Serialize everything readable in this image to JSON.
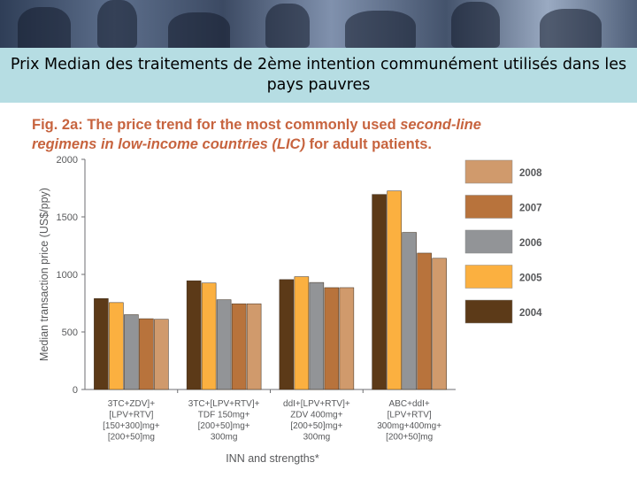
{
  "slide_title": "Prix Median des traitements de 2ème intention communément utilisés dans les pays pauvres",
  "figure_title": {
    "prefix": "Fig. 2a: The price trend for the most commonly used ",
    "italic1": "second-line",
    "line2_italic": "regimens in low-income countries (LIC)",
    "line2_rest": " for adult patients."
  },
  "chart_data": {
    "type": "bar",
    "ylabel": "Median transaction price (US$/ppy)",
    "xlabel": "INN and strengths*",
    "ylim": [
      0,
      2000
    ],
    "yticks": [
      0,
      500,
      1000,
      1500,
      2000
    ],
    "categories": [
      [
        "3TC+ZDV]+",
        "[LPV+RTV]",
        "[150+300]mg+",
        "[200+50]mg"
      ],
      [
        "3TC+[LPV+RTV]+",
        "TDF 150mg+",
        "[200+50]mg+",
        "300mg"
      ],
      [
        "ddI+[LPV+RTV]+",
        "ZDV 400mg+",
        "[200+50]mg+",
        "300mg"
      ],
      [
        "ABC+ddI+",
        "[LPV+RTV]",
        "300mg+400mg+",
        "[200+50]mg"
      ]
    ],
    "series": [
      {
        "name": "2004",
        "color": "#5c3a18",
        "values": [
          790,
          945,
          955,
          1695
        ]
      },
      {
        "name": "2005",
        "color": "#fbb040",
        "values": [
          755,
          925,
          980,
          1725
        ]
      },
      {
        "name": "2006",
        "color": "#929497",
        "values": [
          650,
          780,
          930,
          1365
        ]
      },
      {
        "name": "2007",
        "color": "#b8733c",
        "values": [
          615,
          745,
          885,
          1185
        ]
      },
      {
        "name": "2008",
        "color": "#d09a6c",
        "values": [
          610,
          745,
          885,
          1140
        ]
      }
    ],
    "legend_order": [
      "2008",
      "2007",
      "2006",
      "2005",
      "2004"
    ],
    "legend_position": "right",
    "grid": false
  }
}
